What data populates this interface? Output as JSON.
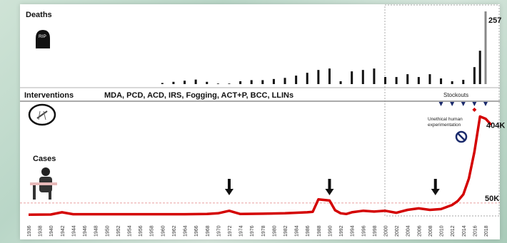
{
  "panels": {
    "deaths_label": "Deaths",
    "interventions_label": "Interventions",
    "interventions_text": "MDA, PCD, ACD, IRS, Fogging, ACT+P, BCC, LLINs",
    "cases_label": "Cases",
    "tombstone_text": "RIP",
    "stockouts_label": "Stockouts",
    "unethical_label_1": "Unethical human",
    "unethical_label_2": "experimentation"
  },
  "icons": {
    "tombstone": "tombstone-icon",
    "mosquito": "mosquito-icon",
    "person": "sick-person-icon",
    "prohibited": "prohibited-icon",
    "arrow": "down-arrow-icon",
    "stockout": "triangle-down-icon"
  },
  "colors": {
    "cases_line": "#d40000",
    "deaths_bar": "#111111",
    "deaths_bar_highlight": "#888888",
    "reference_line": "#e08080",
    "stockout_marker": "#1a2a6c"
  },
  "chart_data": [
    {
      "type": "bar",
      "title": "Deaths",
      "x": [
        1960,
        1962,
        1964,
        1966,
        1968,
        1970,
        1972,
        1974,
        1976,
        1978,
        1980,
        1982,
        1984,
        1986,
        1988,
        1990,
        1992,
        1994,
        1996,
        1998,
        2000,
        2002,
        2004,
        2006,
        2008,
        2010,
        2012,
        2014,
        2016,
        2017,
        2018
      ],
      "values": [
        4,
        8,
        12,
        16,
        8,
        2,
        2,
        10,
        14,
        14,
        18,
        22,
        30,
        40,
        50,
        55,
        10,
        45,
        50,
        55,
        25,
        25,
        35,
        25,
        35,
        20,
        10,
        15,
        60,
        118,
        257
      ],
      "data_labels": [
        {
          "x": 2018,
          "text": "257"
        }
      ],
      "highlight_x": [
        2018
      ],
      "ylim": [
        0,
        257
      ]
    },
    {
      "type": "line",
      "title": "Cases",
      "x": [
        1936,
        1940,
        1942,
        1944,
        1948,
        1952,
        1956,
        1960,
        1964,
        1968,
        1970,
        1972,
        1974,
        1978,
        1982,
        1986,
        1987,
        1988,
        1990,
        1991,
        1992,
        1993,
        1994,
        1996,
        1998,
        2000,
        2002,
        2004,
        2006,
        2008,
        2010,
        2012,
        2013,
        2014,
        2015,
        2016,
        2017,
        2018,
        2019
      ],
      "values": [
        2,
        3,
        12,
        4,
        4,
        4,
        4,
        4,
        4,
        5,
        8,
        18,
        5,
        6,
        8,
        12,
        14,
        65,
        60,
        20,
        8,
        5,
        12,
        18,
        15,
        18,
        10,
        22,
        28,
        22,
        25,
        42,
        58,
        85,
        150,
        260,
        404,
        395,
        370
      ],
      "annotations": [
        {
          "x": 2019,
          "text": "404K"
        },
        {
          "x": 2019,
          "text": "50K"
        }
      ],
      "reference_line": 50,
      "ylim": [
        0,
        420
      ],
      "units": "K"
    }
  ],
  "x_ticks": [
    "1936",
    "1938",
    "1940",
    "1942",
    "1944",
    "1946",
    "1948",
    "1950",
    "1952",
    "1954",
    "1956",
    "1958",
    "1960",
    "1962",
    "1964",
    "1966",
    "1968",
    "1970",
    "1972",
    "1974",
    "1976",
    "1978",
    "1980",
    "1982",
    "1984",
    "1986",
    "1988",
    "1990",
    "1992",
    "1994",
    "1996",
    "1998",
    "2000",
    "2002",
    "2004",
    "2006",
    "2008",
    "2010",
    "2012",
    "2014",
    "2016",
    "2018"
  ],
  "intervention_arrows_x": [
    1972,
    1990,
    2009
  ],
  "stockouts_x": [
    2010,
    2012,
    2014,
    2016,
    2018
  ],
  "unethical_marker_x": [
    2016
  ]
}
